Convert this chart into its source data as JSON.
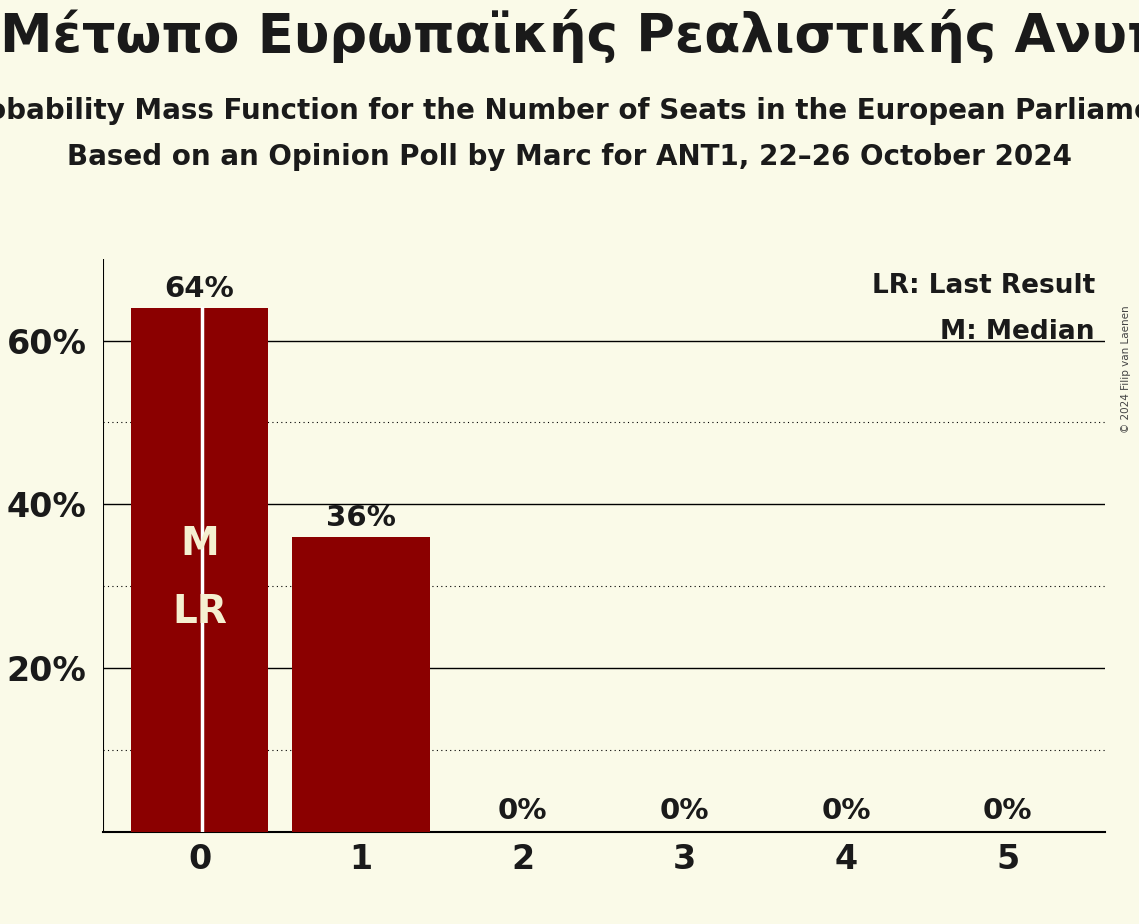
{
  "party_name": "Μέτωπο Ευρωπαϊκής Ρεαλιστικής Ανυπακοής (GUE/NGL)",
  "subtitle1": "Probability Mass Function for the Number of Seats in the European Parliament",
  "subtitle2": "Based on an Opinion Poll by Marc for ANT1, 22–26 October 2024",
  "copyright": "© 2024 Filip van Laenen",
  "seats": [
    0,
    1,
    2,
    3,
    4,
    5
  ],
  "probabilities": [
    0.64,
    0.36,
    0.0,
    0.0,
    0.0,
    0.0
  ],
  "bar_color": "#8B0000",
  "background_color": "#FAFAE8",
  "text_color": "#1a1a1a",
  "label_color": "#F5F0D0",
  "median_seat": 0,
  "last_result_seat": 0,
  "ylim": [
    0,
    0.7
  ],
  "yticks": [
    0.0,
    0.2,
    0.4,
    0.6
  ],
  "ytick_labels": [
    "",
    "20%",
    "40%",
    "60%"
  ],
  "solid_gridlines": [
    0.2,
    0.4,
    0.6
  ],
  "dotted_gridlines": [
    0.1,
    0.3,
    0.5
  ],
  "legend_lr": "LR: Last Result",
  "legend_m": "M: Median",
  "bar_labels": [
    "64%",
    "36%",
    "0%",
    "0%",
    "0%",
    "0%"
  ]
}
